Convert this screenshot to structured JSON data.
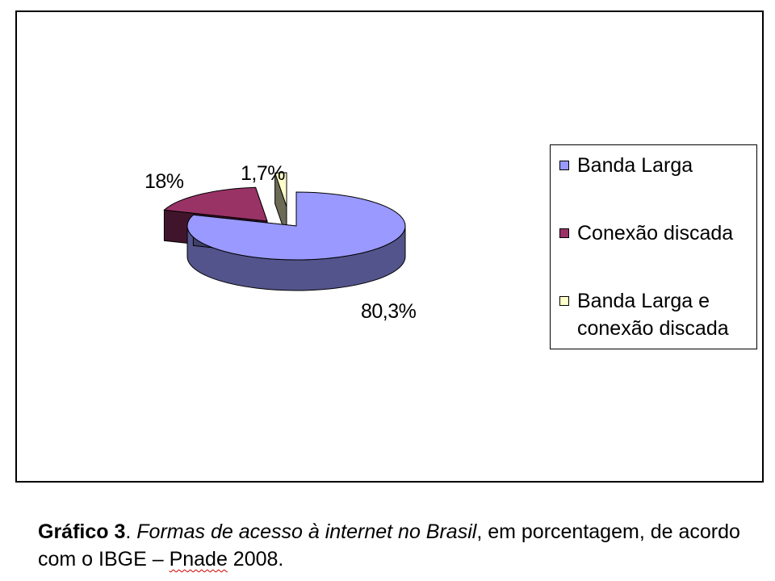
{
  "chart_data": {
    "type": "pie",
    "style": "3d-exploded",
    "slices": [
      {
        "name": "Banda Larga",
        "value": 80.3,
        "label": "80,3%",
        "color": "#9999ff"
      },
      {
        "name": "Conexão discada",
        "value": 18.0,
        "label": "18%",
        "color": "#993366"
      },
      {
        "name": "Banda Larga e conexão discada",
        "value": 1.7,
        "label": "1,7%",
        "color": "#ffffcc"
      }
    ],
    "legend": {
      "placement": "right",
      "entries": [
        "Banda Larga",
        "Conexão discada",
        "Banda Larga e\nconexão discada"
      ]
    }
  },
  "caption": {
    "label": "Gráfico 3",
    "separator": ". ",
    "title": "Formas de acesso à internet no Brasil",
    "rest": ", em porcentagem, de acordo com o IBGE – ",
    "source_word": "Pnade",
    "year": " 2008."
  }
}
